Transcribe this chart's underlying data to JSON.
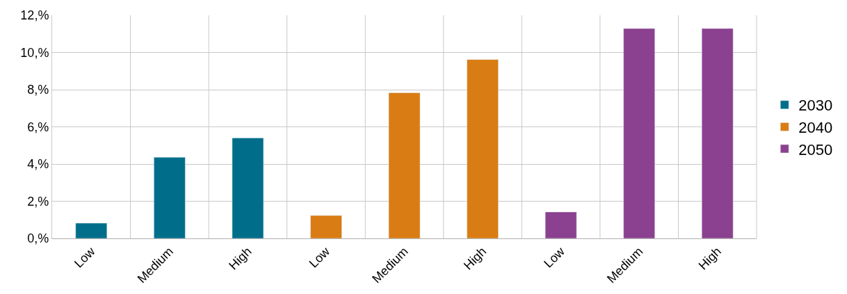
{
  "chart_data": {
    "type": "bar",
    "categories": [
      "Low",
      "Medium",
      "High",
      "Low",
      "Medium",
      "High",
      "Low",
      "Medium",
      "High"
    ],
    "series": [
      {
        "name": "2030",
        "color": "#006e8a",
        "values": [
          0.82,
          4.36,
          5.4,
          null,
          null,
          null,
          null,
          null,
          null
        ]
      },
      {
        "name": "2040",
        "color": "#d97c13",
        "values": [
          null,
          null,
          null,
          1.23,
          7.83,
          9.62,
          null,
          null,
          null
        ]
      },
      {
        "name": "2050",
        "color": "#8b418f",
        "values": [
          null,
          null,
          null,
          null,
          null,
          null,
          1.42,
          11.29,
          11.29
        ]
      }
    ],
    "ylim": [
      0,
      12
    ],
    "yticks": [
      {
        "value": 0,
        "label": "0,%"
      },
      {
        "value": 2,
        "label": "2,%"
      },
      {
        "value": 4,
        "label": "4,%"
      },
      {
        "value": 6,
        "label": "6,%"
      },
      {
        "value": 8,
        "label": "8,%"
      },
      {
        "value": 10,
        "label": "10,%"
      },
      {
        "value": 12,
        "label": "12,%"
      }
    ],
    "grid": true,
    "legend": "right"
  }
}
